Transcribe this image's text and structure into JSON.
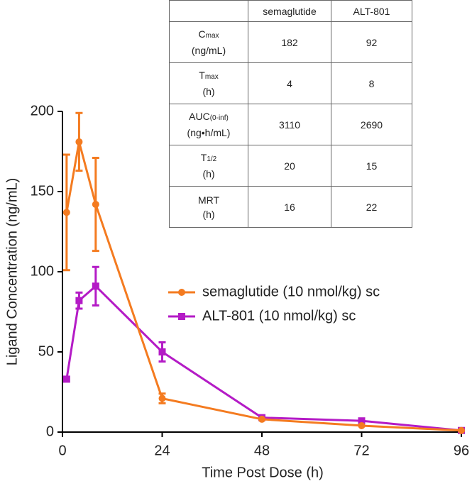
{
  "chart_data": {
    "type": "line",
    "xlabel": "Time Post Dose (h)",
    "ylabel": "Ligand Concentration (ng/mL)",
    "x": [
      1,
      4,
      8,
      24,
      48,
      72,
      96
    ],
    "series": [
      {
        "name": "semaglutide (10 nmol/kg) sc",
        "color": "#f47b20",
        "marker": "circle",
        "values": [
          137,
          181,
          142,
          21,
          8,
          4,
          1
        ],
        "errors": [
          36,
          18,
          29,
          3,
          null,
          null,
          null
        ]
      },
      {
        "name": "ALT-801 (10 nmol/kg) sc",
        "color": "#b41bc6",
        "marker": "square",
        "values": [
          33,
          82,
          91,
          50,
          9,
          7,
          1
        ],
        "errors": [
          null,
          5,
          12,
          6,
          null,
          null,
          null
        ]
      }
    ],
    "xlim": [
      0,
      96
    ],
    "xticks": [
      0,
      24,
      48,
      72,
      96
    ],
    "ylim": [
      0,
      200
    ],
    "yticks": [
      0,
      50,
      100,
      150,
      200
    ],
    "legend": "center-right"
  },
  "table": {
    "header": [
      "semaglutide",
      "ALT-801"
    ],
    "rows": [
      {
        "label": "C",
        "sub": "max",
        "unit": "(ng/mL)",
        "cells": [
          "182",
          "92"
        ]
      },
      {
        "label": "T",
        "sub": "max",
        "unit": "(h)",
        "cells": [
          "4",
          "8"
        ]
      },
      {
        "label": "AUC",
        "sub": "(0-inf)",
        "unit": "(ng•h/mL)",
        "cells": [
          "3110",
          "2690"
        ]
      },
      {
        "label": "T",
        "sub": "1/2",
        "unit": "(h)",
        "cells": [
          "20",
          "15"
        ]
      },
      {
        "label": "MRT",
        "unit": "(h)",
        "cells": [
          "16",
          "22"
        ]
      }
    ]
  }
}
